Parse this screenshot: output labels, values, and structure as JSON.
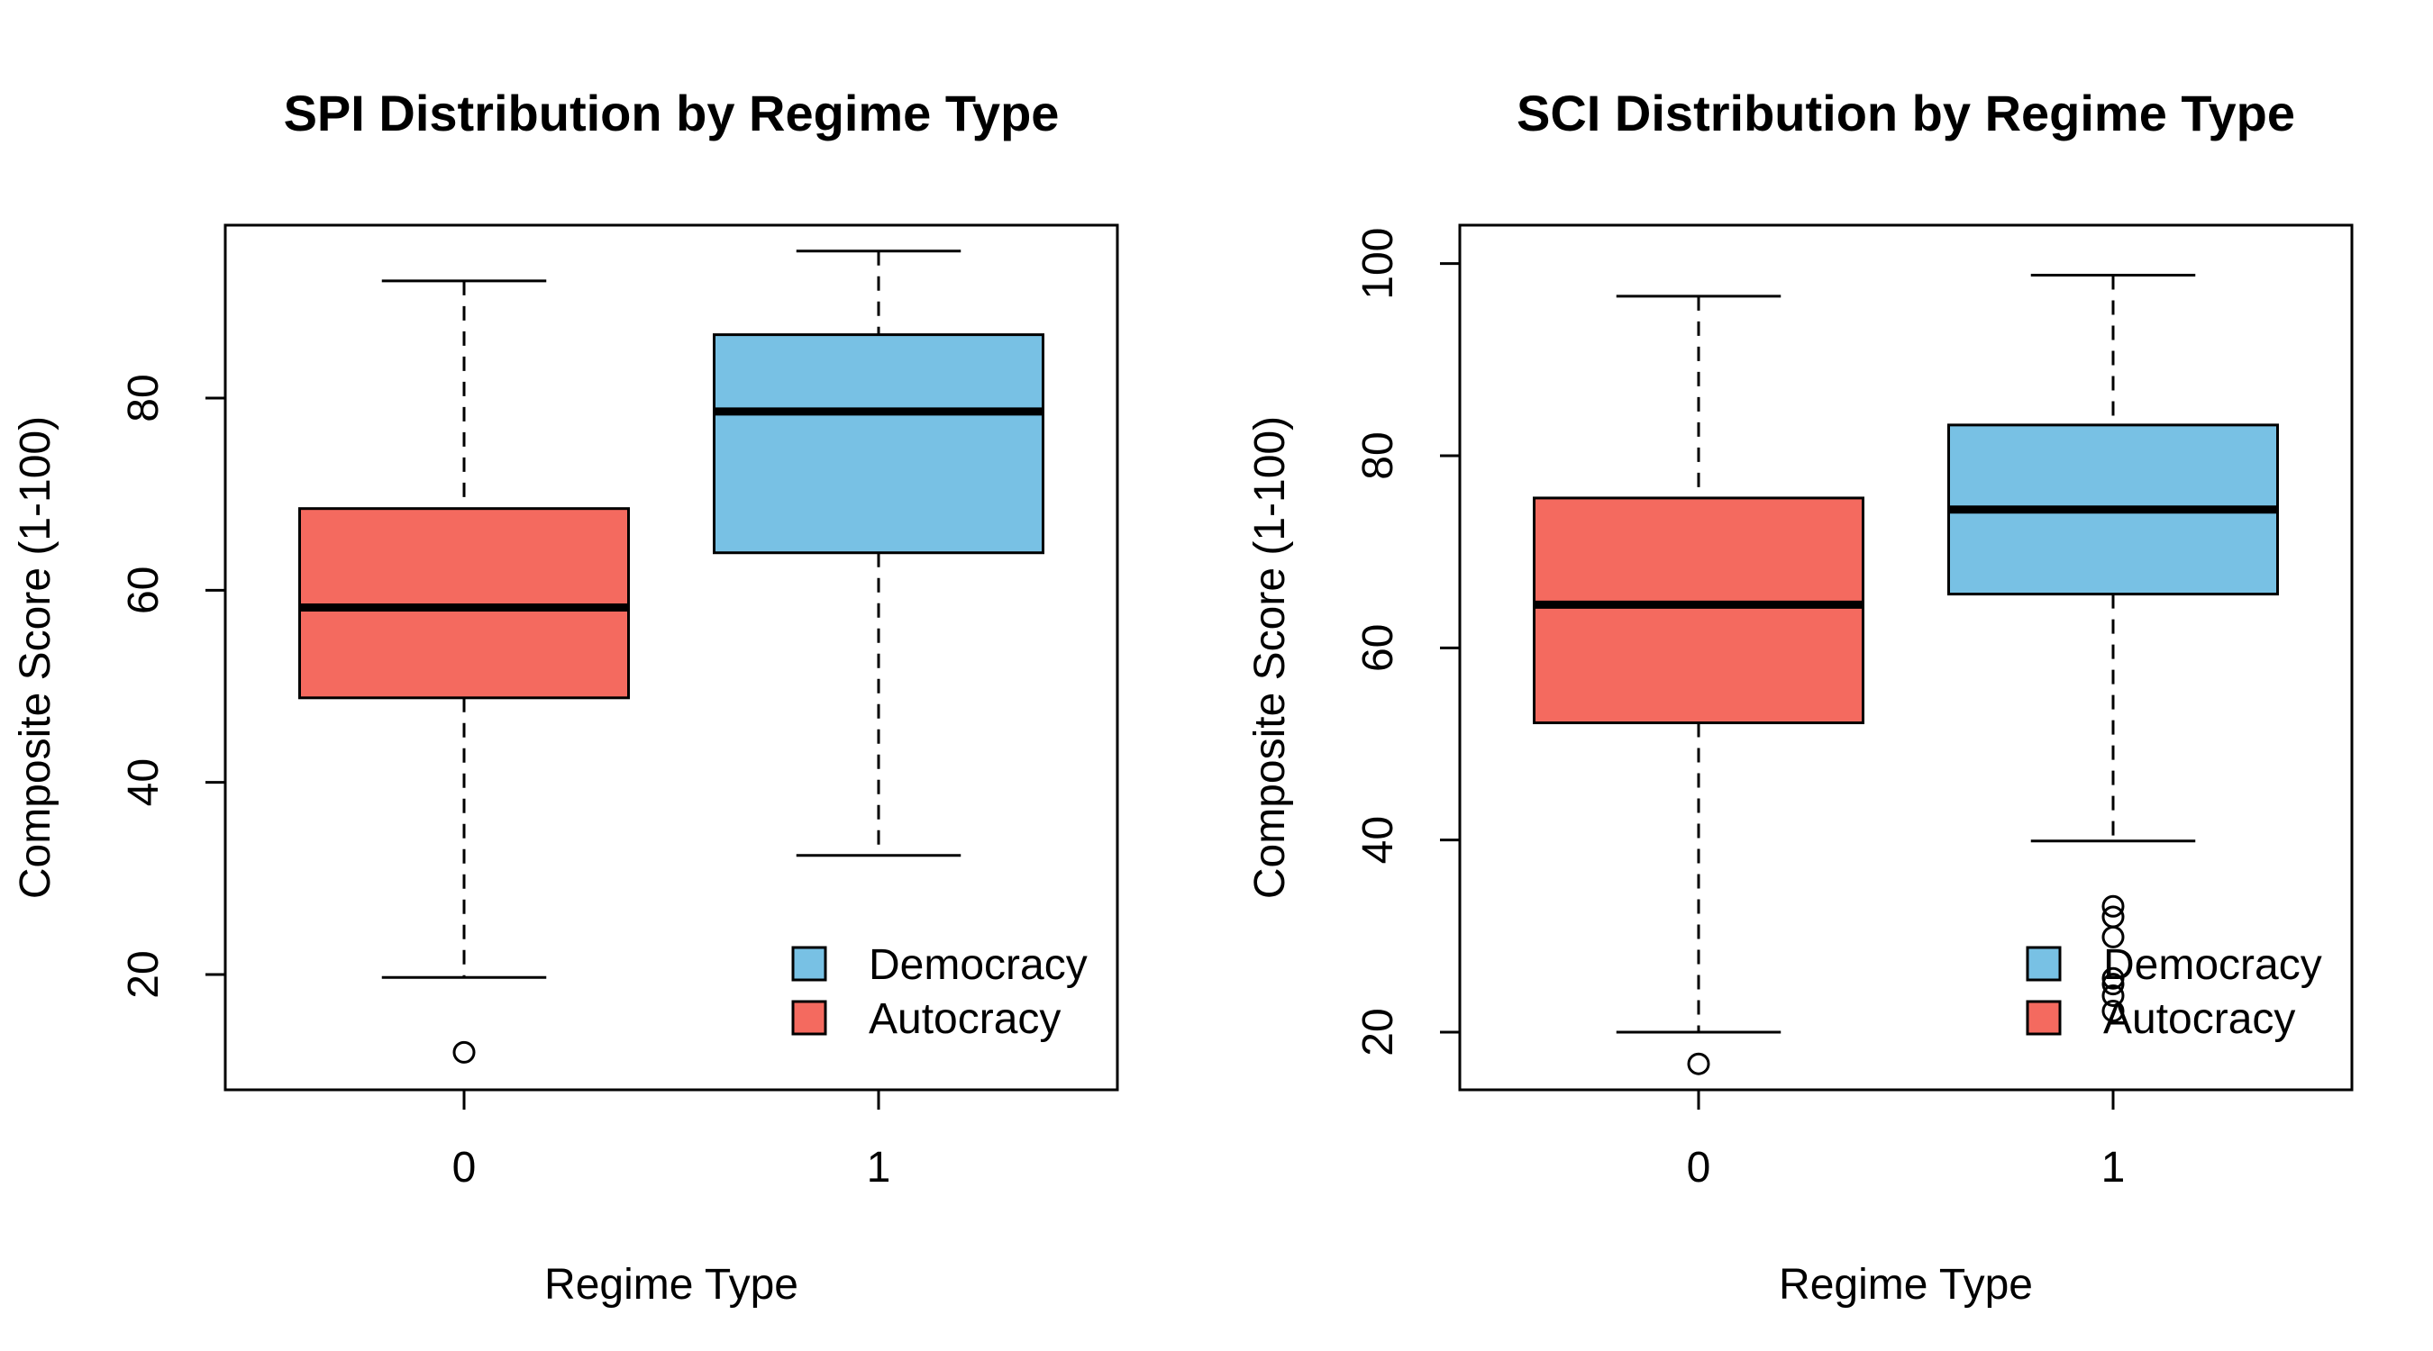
{
  "chart_data": [
    {
      "type": "box",
      "title": "SPI Distribution by Regime Type",
      "xlabel": "Regime Type",
      "ylabel": "Composite Score (1-100)",
      "categories": [
        "0",
        "1"
      ],
      "ylim": [
        8,
        98
      ],
      "yticks": [
        "20",
        "40",
        "60",
        "80"
      ],
      "ytick_values": [
        20,
        40,
        60,
        80
      ],
      "boxes": [
        {
          "category": "0",
          "series": "Autocracy",
          "min": 19.7,
          "q1": 48.8,
          "median": 58.2,
          "q3": 68.5,
          "max": 92.2,
          "outliers": [
            11.9
          ]
        },
        {
          "category": "1",
          "series": "Democracy",
          "min": 32.4,
          "q1": 63.9,
          "median": 78.6,
          "q3": 86.6,
          "max": 95.3,
          "outliers": []
        }
      ],
      "legend": {
        "position": "bottom-right",
        "items": [
          {
            "label": "Democracy",
            "color": "#78c1e4"
          },
          {
            "label": "Autocracy",
            "color": "#f46a5f"
          }
        ]
      }
    },
    {
      "type": "box",
      "title": "SCI Distribution by Regime Type",
      "xlabel": "Regime Type",
      "ylabel": "Composite Score (1-100)",
      "categories": [
        "0",
        "1"
      ],
      "ylim": [
        14,
        104
      ],
      "yticks": [
        "20",
        "40",
        "60",
        "80",
        "100"
      ],
      "ytick_values": [
        20,
        40,
        60,
        80,
        100
      ],
      "boxes": [
        {
          "category": "0",
          "series": "Autocracy",
          "min": 20.0,
          "q1": 52.2,
          "median": 64.5,
          "q3": 75.6,
          "max": 96.6,
          "outliers": [
            16.7
          ]
        },
        {
          "category": "1",
          "series": "Democracy",
          "min": 39.9,
          "q1": 65.6,
          "median": 74.4,
          "q3": 83.2,
          "max": 98.8,
          "outliers": [
            33.1,
            32.0,
            29.9,
            25.6,
            25.0,
            23.8,
            22.2
          ]
        }
      ],
      "legend": {
        "position": "bottom-right",
        "items": [
          {
            "label": "Democracy",
            "color": "#78c1e4"
          },
          {
            "label": "Autocracy",
            "color": "#f46a5f"
          }
        ]
      }
    }
  ]
}
